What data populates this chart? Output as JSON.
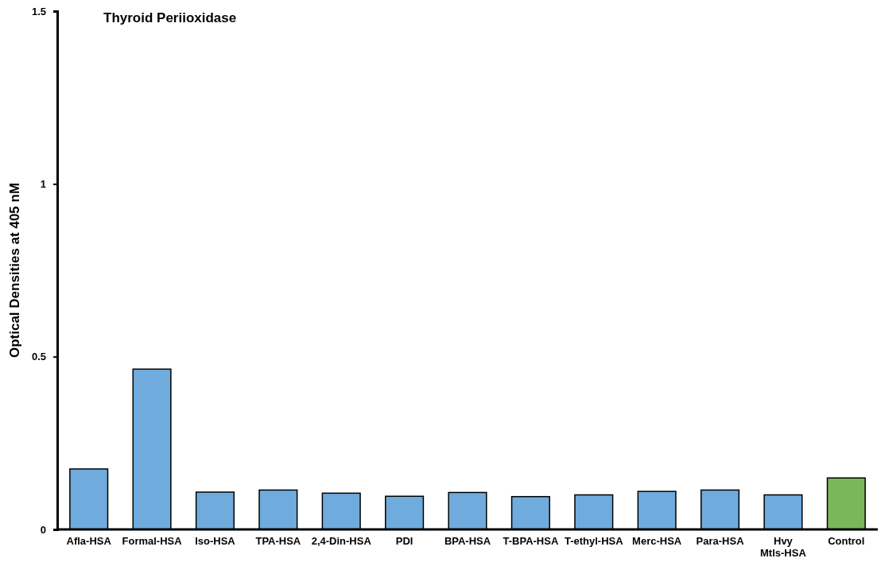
{
  "chart_data": {
    "type": "bar",
    "title": "Thyroid Periioxidase",
    "ylabel": "Optical Densities at 405 nM",
    "categories": [
      "Afla-HSA",
      "Formal-HSA",
      "Iso-HSA",
      "TPA-HSA",
      "2,4-Din-HSA",
      "PDI",
      "BPA-HSA",
      "T-BPA-HSA",
      "T-ethyl-HSA",
      "Merc-HSA",
      "Para-HSA",
      "Hvy Mtls-HSA",
      "Control"
    ],
    "values": [
      0.175,
      0.464,
      0.108,
      0.114,
      0.105,
      0.096,
      0.107,
      0.095,
      0.1,
      0.11,
      0.114,
      0.1,
      0.149
    ],
    "colors": [
      "#6fabdd",
      "#6fabdd",
      "#6fabdd",
      "#6fabdd",
      "#6fabdd",
      "#6fabdd",
      "#6fabdd",
      "#6fabdd",
      "#6fabdd",
      "#6fabdd",
      "#6fabdd",
      "#6fabdd",
      "#7cb65a"
    ],
    "ylim": [
      0,
      1.5
    ],
    "yticks": [
      0,
      0.5,
      1,
      1.5
    ],
    "grid": false
  }
}
